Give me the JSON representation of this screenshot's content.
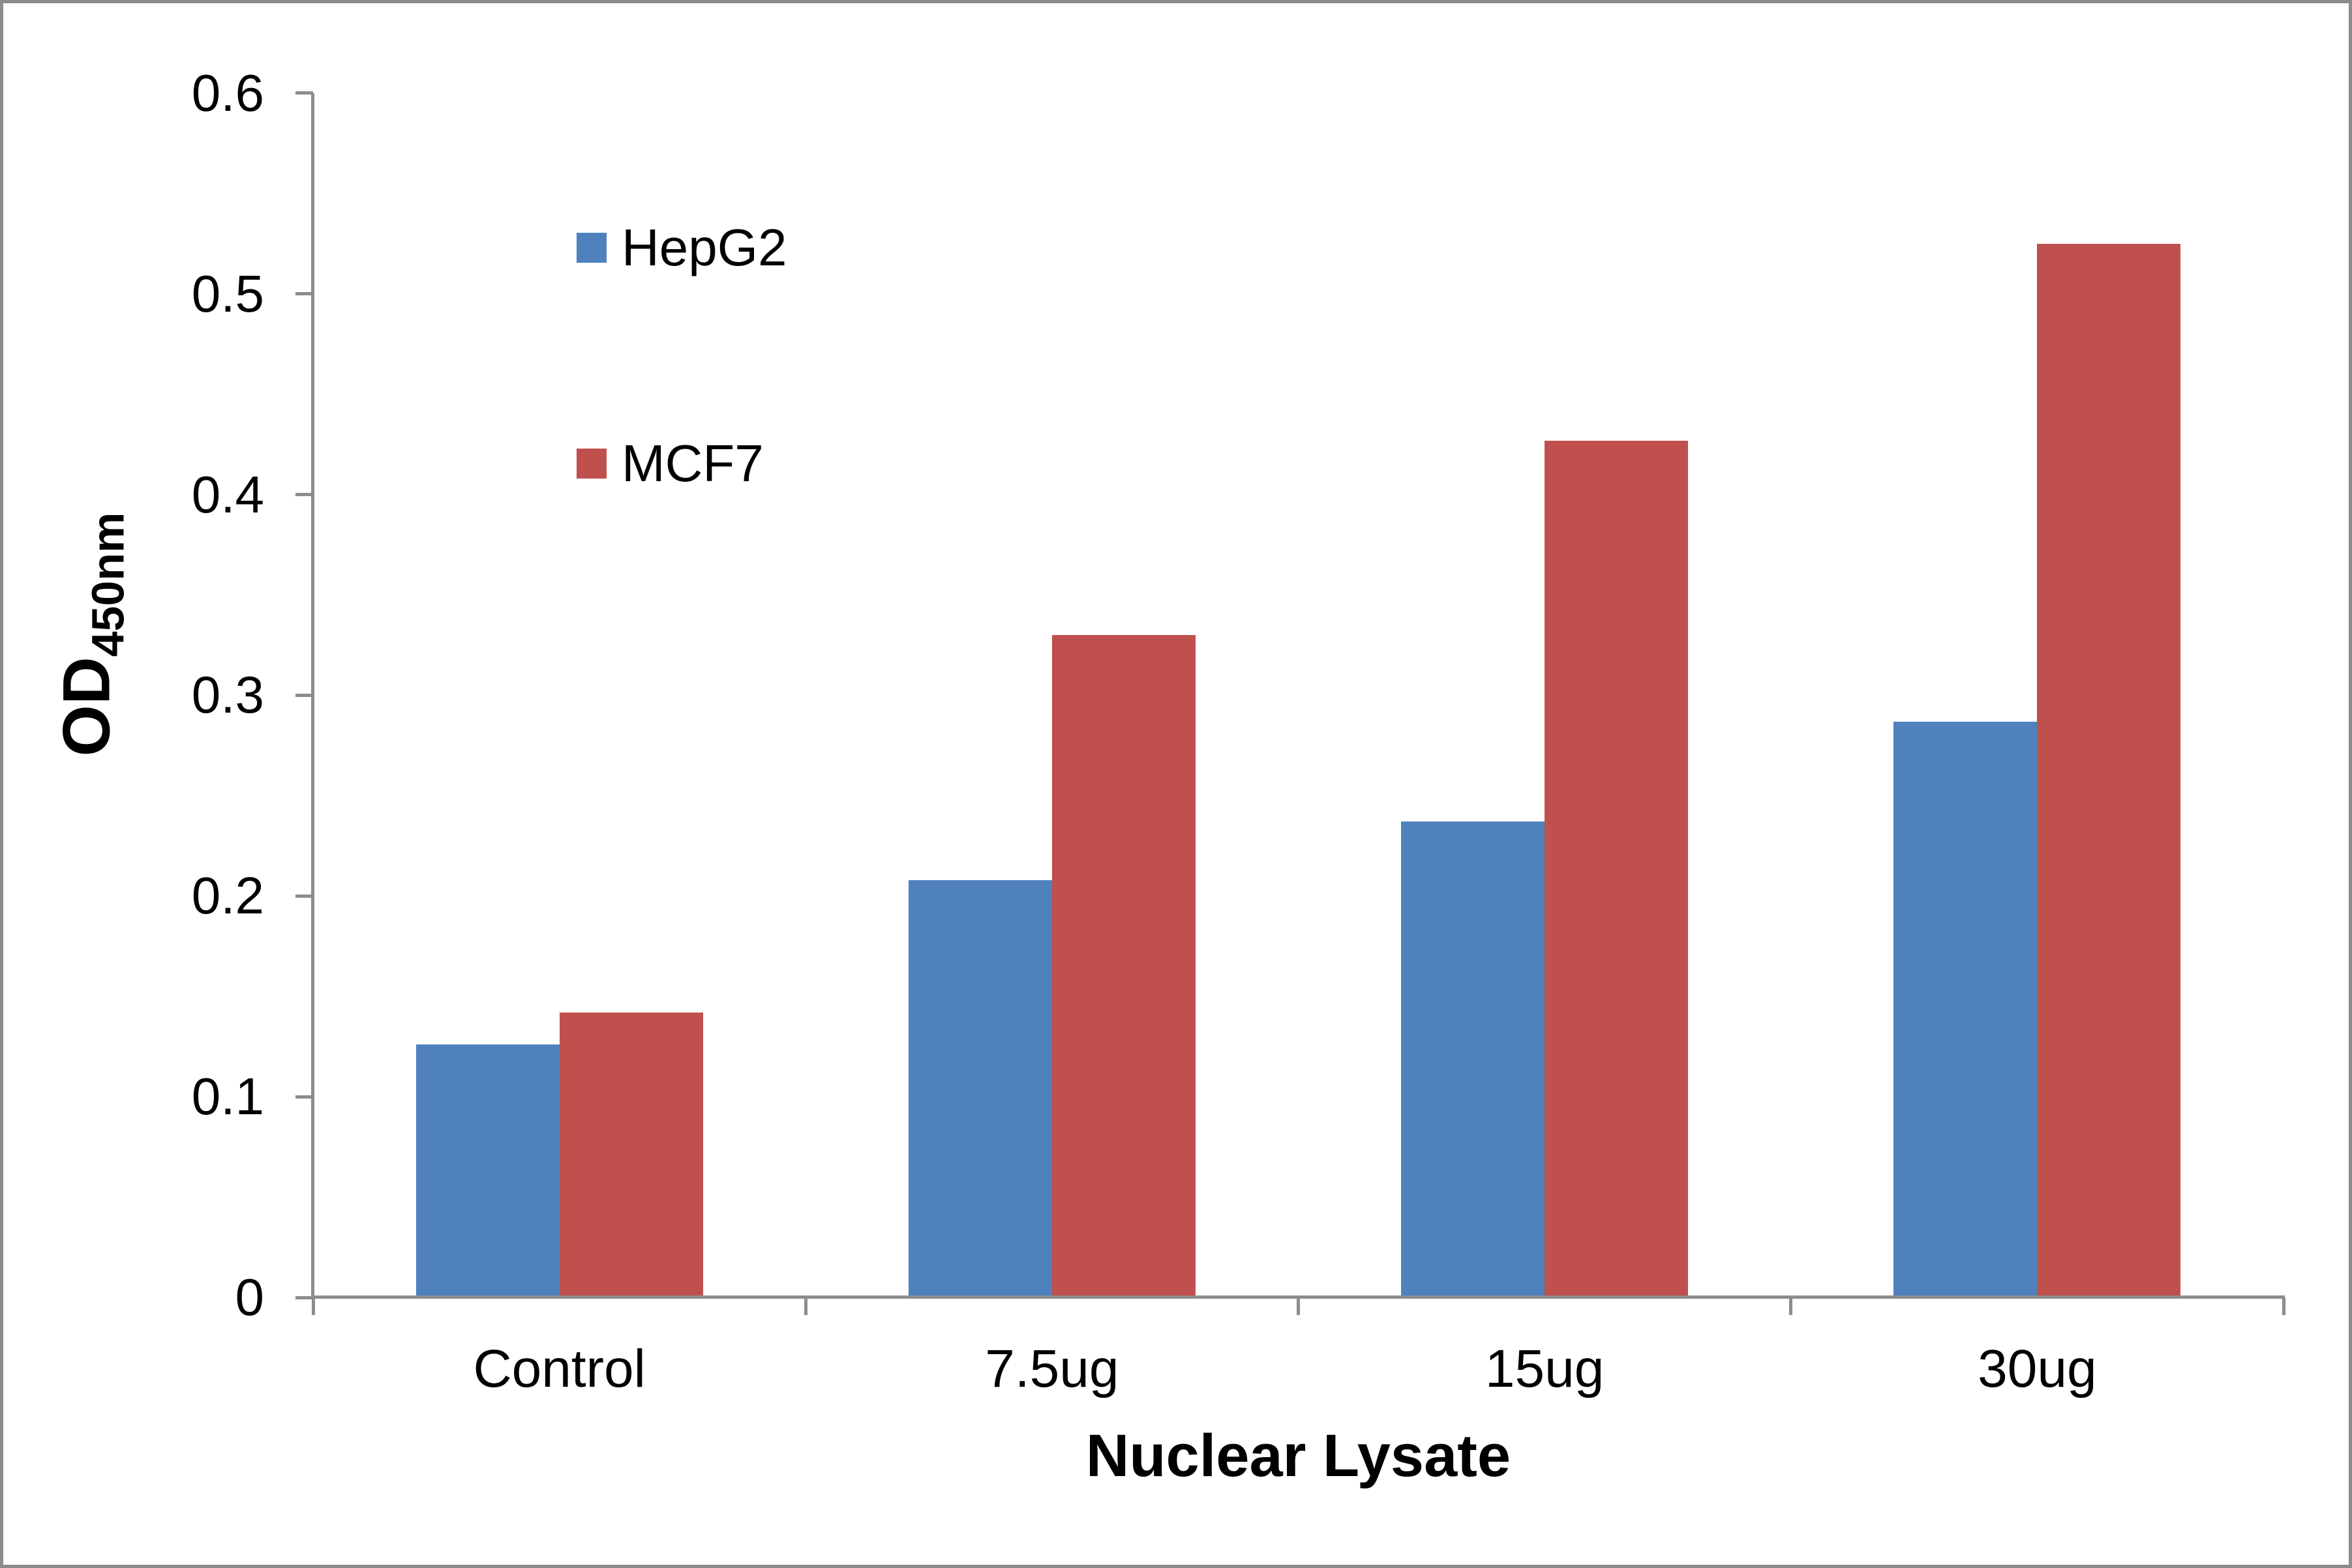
{
  "colors": {
    "axis": "#8C8C8C",
    "border": "#8C8C8C",
    "text": "#000000",
    "background": "#FFFFFF"
  },
  "chart_data": {
    "type": "bar",
    "categories": [
      "Control",
      "7.5ug",
      "15ug",
      "30ug"
    ],
    "series": [
      {
        "name": "HepG2",
        "color": "#4F81BD",
        "values": [
          0.126,
          0.208,
          0.237,
          0.287
        ]
      },
      {
        "name": "MCF7",
        "color": "#C0504D",
        "values": [
          0.142,
          0.33,
          0.427,
          0.525
        ]
      }
    ],
    "xlabel": "Nuclear Lysate",
    "ylabel_main": "OD",
    "ylabel_sub": "450nm",
    "ylim": [
      0,
      0.6
    ],
    "ytick_step": 0.1,
    "ytick_labels": [
      "0",
      "0.1",
      "0.2",
      "0.3",
      "0.4",
      "0.5",
      "0.6"
    ],
    "grid": false,
    "legend_position": "upper-left-inside"
  }
}
